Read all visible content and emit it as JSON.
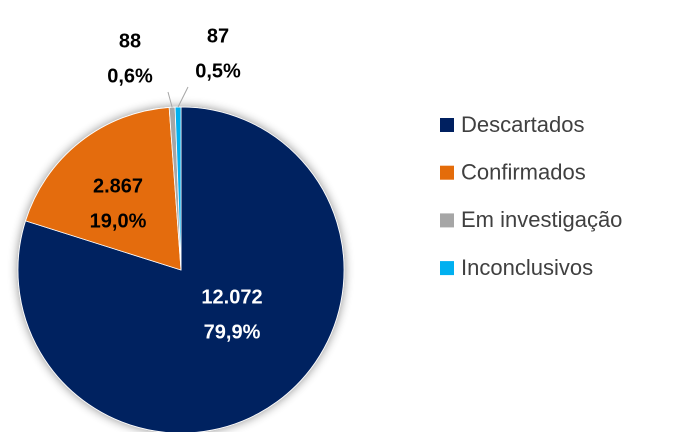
{
  "chart_data": {
    "type": "pie",
    "categories": [
      "Descartados",
      "Confirmados",
      "Em investigação",
      "Inconclusivos"
    ],
    "values": [
      12072,
      2867,
      88,
      87
    ],
    "value_labels": [
      "12.072",
      "2.867",
      "88",
      "87"
    ],
    "percentages": [
      79.9,
      19.0,
      0.6,
      0.5
    ],
    "percentage_labels": [
      "79,9%",
      "19,0%",
      "0,6%",
      "0,5%"
    ],
    "colors": [
      "#002060",
      "#e46c0a",
      "#a6a6a6",
      "#00b0f0"
    ],
    "legend": "right"
  }
}
